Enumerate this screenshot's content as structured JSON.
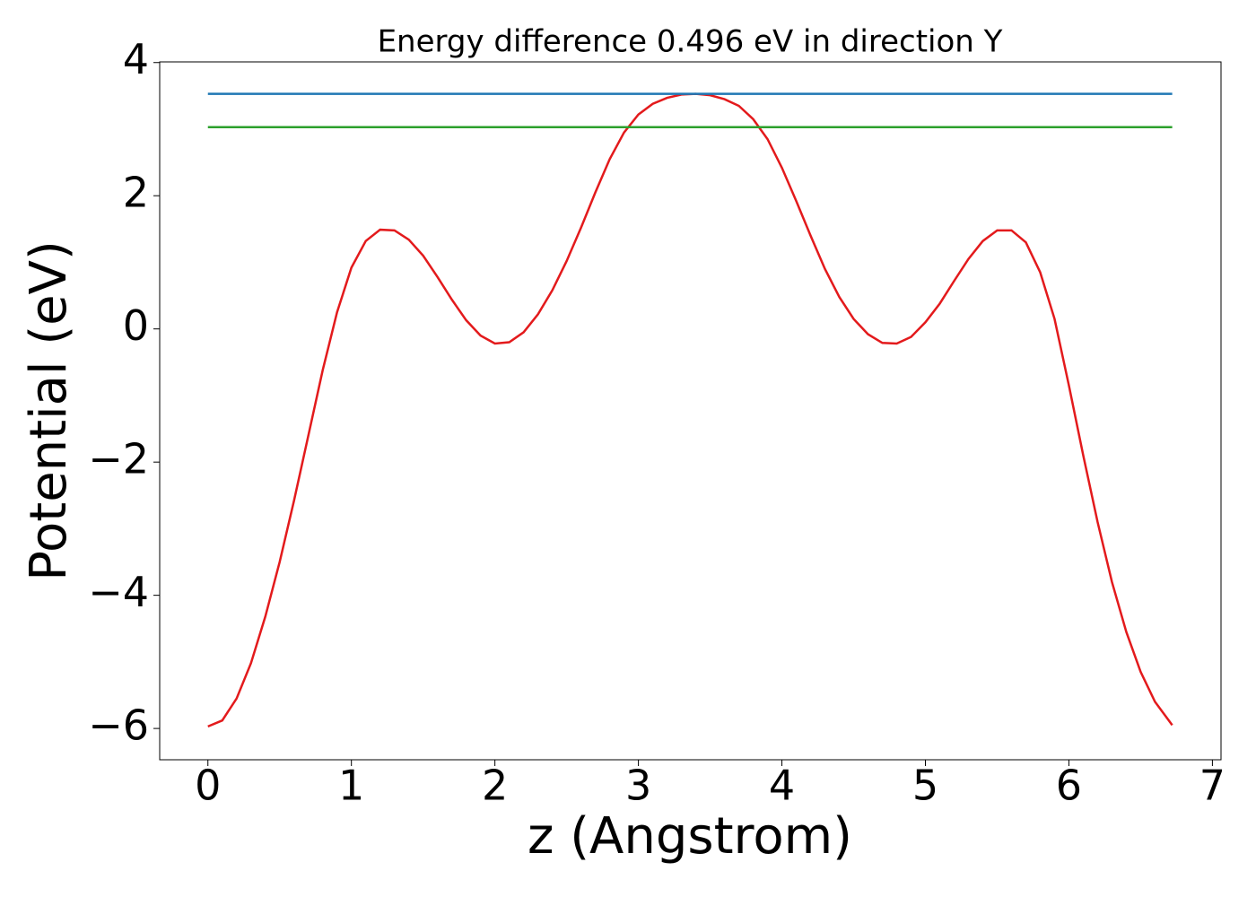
{
  "chart_data": {
    "type": "line",
    "title": "Energy difference 0.496 eV in direction Y",
    "xlabel": "z (Angstrom)",
    "ylabel": "Potential (eV)",
    "xlim": [
      -0.336,
      7.06
    ],
    "ylim": [
      -6.47,
      4.01
    ],
    "xticks": [
      0,
      1,
      2,
      3,
      4,
      5,
      6,
      7
    ],
    "yticks": [
      {
        "value": -6,
        "label": "−6"
      },
      {
        "value": -4,
        "label": "−4"
      },
      {
        "value": -2,
        "label": "−2"
      },
      0,
      2,
      4
    ],
    "grid": false,
    "series": [
      {
        "color": "#e31a1c",
        "x": [
          0,
          0.1,
          0.2,
          0.3,
          0.4,
          0.5,
          0.6,
          0.7,
          0.8,
          0.9,
          1.0,
          1.1,
          1.2,
          1.3,
          1.4,
          1.5,
          1.6,
          1.7,
          1.8,
          1.9,
          2.0,
          2.1,
          2.2,
          2.3,
          2.4,
          2.5,
          2.6,
          2.7,
          2.8,
          2.9,
          3.0,
          3.1,
          3.2,
          3.3,
          3.4,
          3.5,
          3.6,
          3.7,
          3.8,
          3.9,
          4.0,
          4.1,
          4.2,
          4.3,
          4.4,
          4.5,
          4.6,
          4.7,
          4.8,
          4.9,
          5.0,
          5.1,
          5.2,
          5.3,
          5.4,
          5.5,
          5.6,
          5.7,
          5.8,
          5.9,
          6.0,
          6.1,
          6.2,
          6.3,
          6.4,
          6.5,
          6.6,
          6.72
        ],
        "values": [
          -5.97,
          -5.88,
          -5.55,
          -5.02,
          -4.32,
          -3.5,
          -2.58,
          -1.6,
          -0.62,
          0.25,
          0.92,
          1.32,
          1.49,
          1.48,
          1.34,
          1.1,
          0.78,
          0.44,
          0.13,
          -0.1,
          -0.22,
          -0.2,
          -0.05,
          0.22,
          0.58,
          1.02,
          1.52,
          2.05,
          2.55,
          2.95,
          3.22,
          3.38,
          3.47,
          3.52,
          3.53,
          3.51,
          3.45,
          3.35,
          3.15,
          2.85,
          2.42,
          1.92,
          1.4,
          0.9,
          0.48,
          0.15,
          -0.08,
          -0.21,
          -0.22,
          -0.12,
          0.1,
          0.38,
          0.72,
          1.05,
          1.32,
          1.48,
          1.48,
          1.3,
          0.85,
          0.15,
          -0.85,
          -1.9,
          -2.9,
          -3.8,
          -4.55,
          -5.15,
          -5.6,
          -5.95
        ]
      },
      {
        "color": "#1f77b4",
        "x": [
          0,
          6.72
        ],
        "values": [
          3.53,
          3.53
        ]
      },
      {
        "color": "#2ca02c",
        "x": [
          0,
          6.72
        ],
        "values": [
          3.03,
          3.03
        ]
      }
    ]
  }
}
